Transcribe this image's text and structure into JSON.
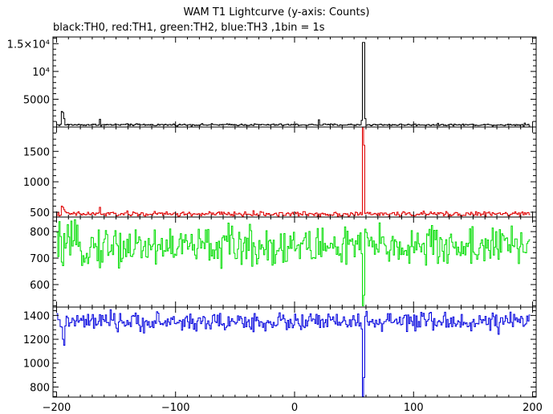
{
  "chart_data": {
    "type": "line",
    "title": "WAM T1 Lightcurve (y-axis: Counts)",
    "subtitle": "black:TH0, red:TH1, green:TH2, blue:TH3 ,1bin = 1s",
    "x_range": [
      -203,
      203
    ],
    "x_ticks": [
      -200,
      -100,
      0,
      100,
      200
    ],
    "x_tick_labels": [
      "−200",
      "−100",
      "0",
      "100",
      "200"
    ],
    "grid": false,
    "panels": [
      {
        "name": "TH0",
        "color": "#000000",
        "ylim": [
          0,
          16200
        ],
        "y_ticks": [
          5000,
          10000,
          15000
        ],
        "y_tick_labels": [
          "5000",
          "10⁴",
          "1.5×10⁴"
        ],
        "baseline": 400,
        "noise": 90,
        "events": [
          [
            -196,
            2800
          ],
          [
            -195,
            2600
          ],
          [
            -194,
            1500
          ],
          [
            -164,
            1400
          ],
          [
            -138,
            550
          ],
          [
            20,
            1300
          ],
          [
            56,
            1200
          ],
          [
            57,
            15200
          ],
          [
            58,
            15200
          ],
          [
            59,
            1500
          ],
          [
            144,
            450
          ],
          [
            193,
            700
          ]
        ]
      },
      {
        "name": "TH1",
        "color": "#e00000",
        "ylim": [
          420,
          1900
        ],
        "y_ticks": [
          500,
          1000,
          1500
        ],
        "y_tick_labels": [
          "500",
          "1000",
          "1500"
        ],
        "baseline": 470,
        "noise": 20,
        "events": [
          [
            -196,
            600
          ],
          [
            -195,
            580
          ],
          [
            -194,
            540
          ],
          [
            -164,
            580
          ],
          [
            57,
            1900
          ],
          [
            58,
            1600
          ]
        ]
      },
      {
        "name": "TH2",
        "color": "#00dd00",
        "ylim": [
          515,
          855
        ],
        "y_ticks": [
          600,
          700,
          800
        ],
        "y_tick_labels": [
          "600",
          "700",
          "800"
        ],
        "baseline": 745,
        "noise": 38,
        "events": [
          [
            57,
            520
          ],
          [
            58,
            560
          ]
        ]
      },
      {
        "name": "TH3",
        "color": "#0000dd",
        "ylim": [
          715,
          1470
        ],
        "y_ticks": [
          800,
          1000,
          1200,
          1400
        ],
        "y_tick_labels": [
          "800",
          "1000",
          "1200",
          "1400"
        ],
        "baseline": 1345,
        "noise": 38,
        "events": [
          [
            -194,
            1150
          ],
          [
            -195,
            1200
          ],
          [
            57,
            720
          ],
          [
            58,
            880
          ]
        ]
      }
    ]
  }
}
